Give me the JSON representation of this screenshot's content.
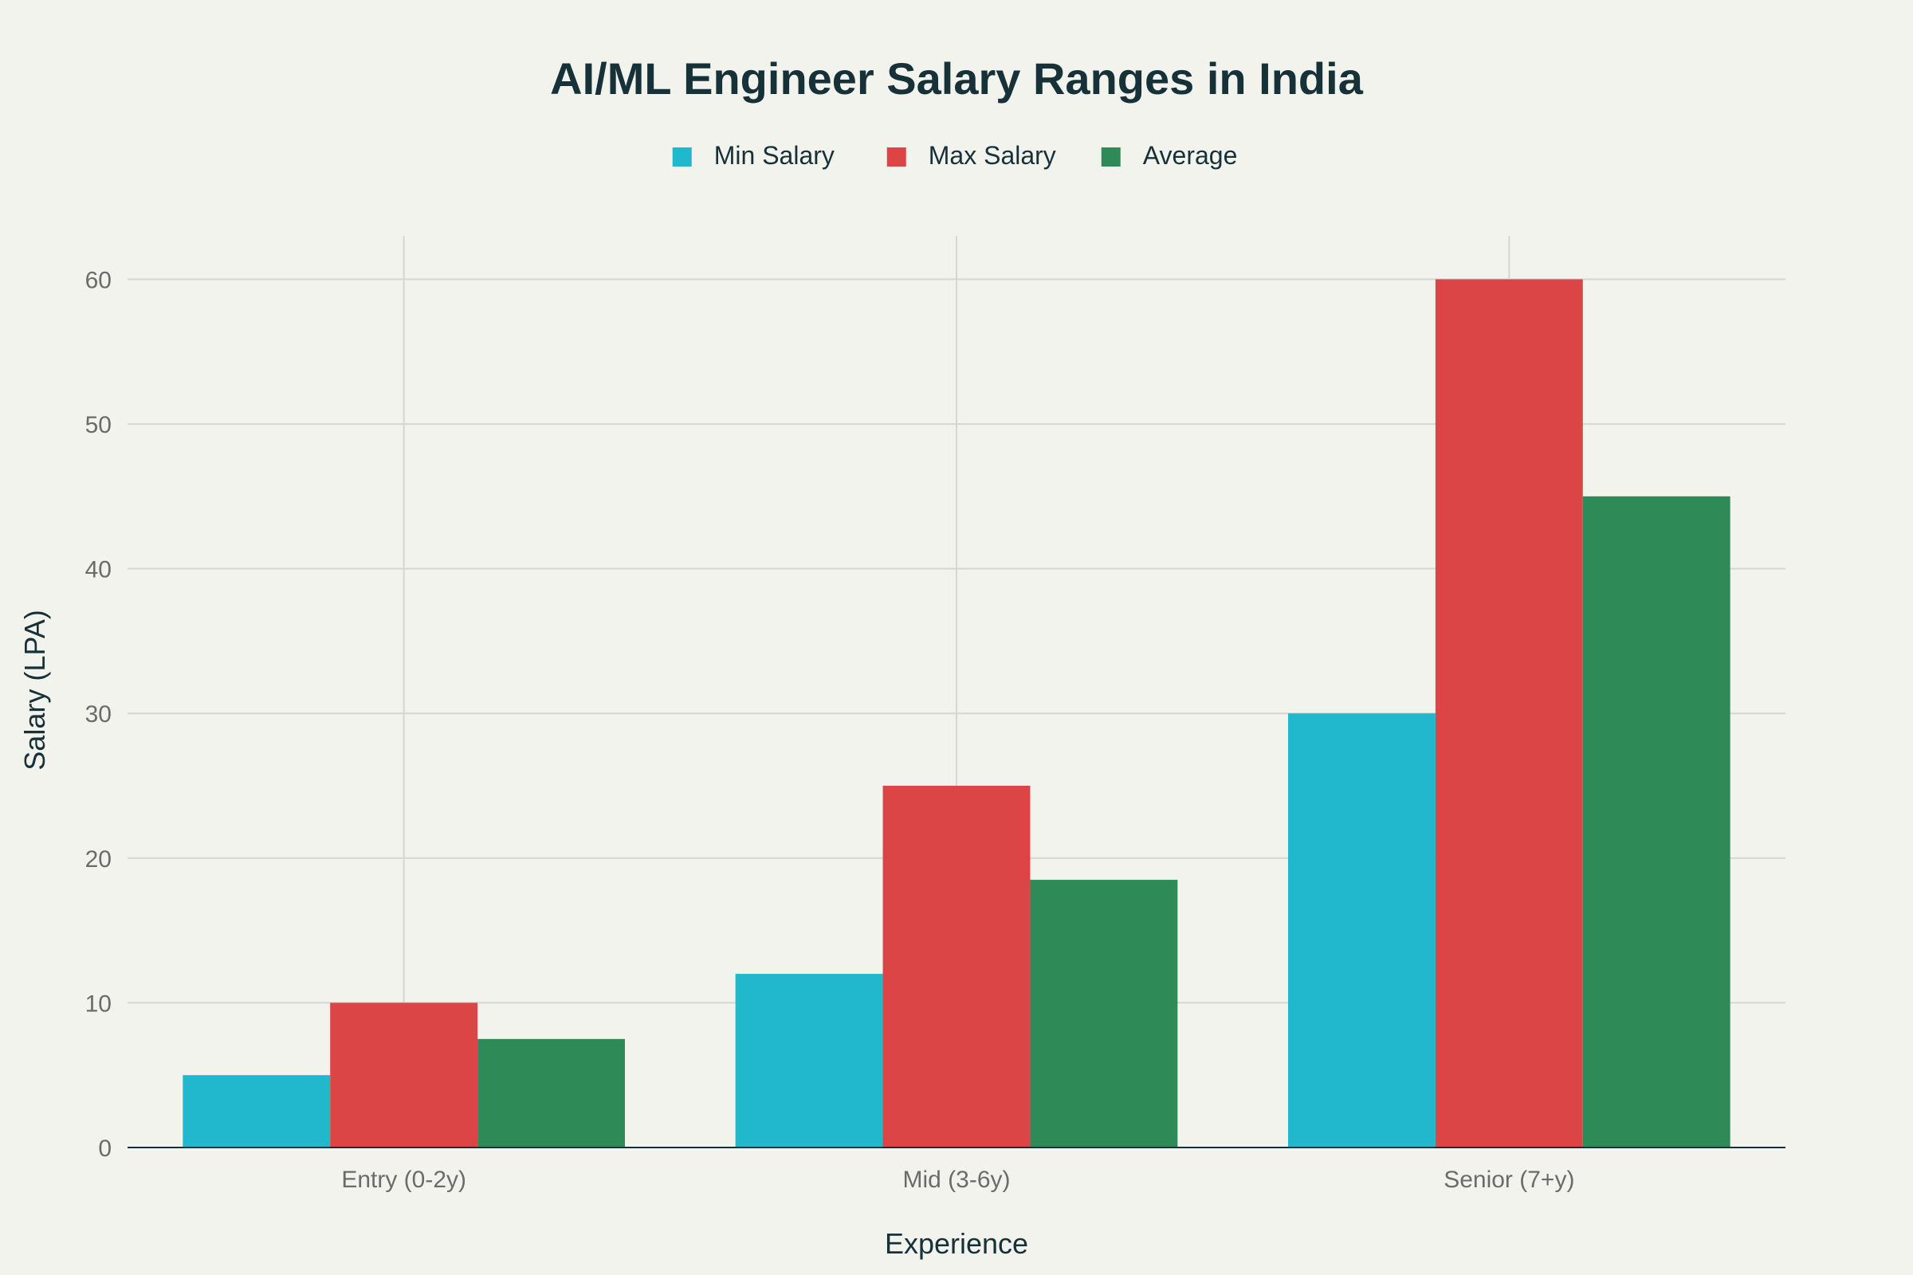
{
  "chart_data": {
    "type": "bar",
    "title": "AI/ML Engineer Salary Ranges in India",
    "xlabel": "Experience",
    "ylabel": "Salary (LPA)",
    "categories": [
      "Entry (0-2y)",
      "Mid (3-6y)",
      "Senior (7+y)"
    ],
    "series": [
      {
        "name": "Min Salary",
        "values": [
          5,
          12,
          30
        ],
        "color": "#21b8cd"
      },
      {
        "name": "Max Salary",
        "values": [
          10,
          25,
          60
        ],
        "color": "#db4545"
      },
      {
        "name": "Average",
        "values": [
          7.5,
          18.5,
          45
        ],
        "color": "#2e8b57"
      }
    ],
    "ylim": [
      0,
      63
    ],
    "yticks": [
      0,
      10,
      20,
      30,
      40,
      50,
      60
    ],
    "grid": true,
    "legend_position": "top-center"
  },
  "colors": {
    "background": "#f3f3ee",
    "grid": "#d6d6d2",
    "axis_line": "#173138",
    "title": "#173138",
    "tick_label": "#6b6b6b"
  }
}
